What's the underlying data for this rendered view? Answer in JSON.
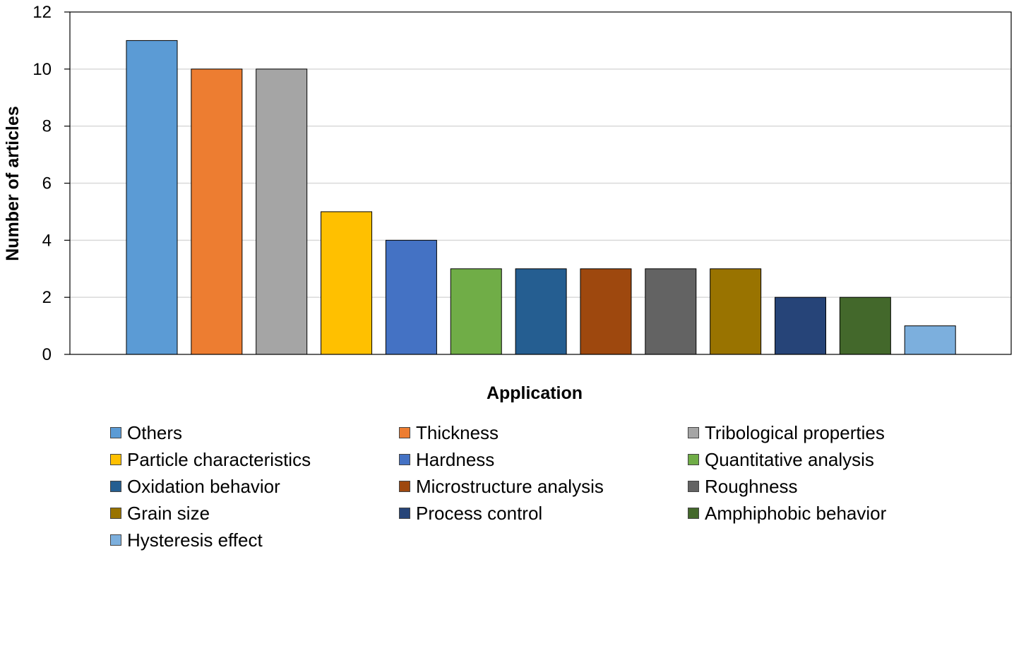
{
  "chart_data": {
    "type": "bar",
    "xlabel": "Application",
    "ylabel": "Number of articles",
    "ylim": [
      0,
      12
    ],
    "yticks": [
      0,
      2,
      4,
      6,
      8,
      10,
      12
    ],
    "grid": "horizontal",
    "legend_position": "bottom",
    "categories": [
      "Others",
      "Thickness",
      "Tribological properties",
      "Particle characteristics",
      "Hardness",
      "Quantitative analysis",
      "Oxidation behavior",
      "Microstructure analysis",
      "Roughness",
      "Grain size",
      "Process control",
      "Amphiphobic behavior",
      "Hysteresis effect"
    ],
    "values": [
      11,
      10,
      10,
      5,
      4,
      3,
      3,
      3,
      3,
      3,
      2,
      2,
      1
    ],
    "colors": [
      "#5b9bd5",
      "#ed7d31",
      "#a5a5a5",
      "#ffc000",
      "#4472c4",
      "#70ad47",
      "#255e91",
      "#9e480e",
      "#636363",
      "#997300",
      "#264478",
      "#43682b",
      "#7cafdd"
    ]
  }
}
